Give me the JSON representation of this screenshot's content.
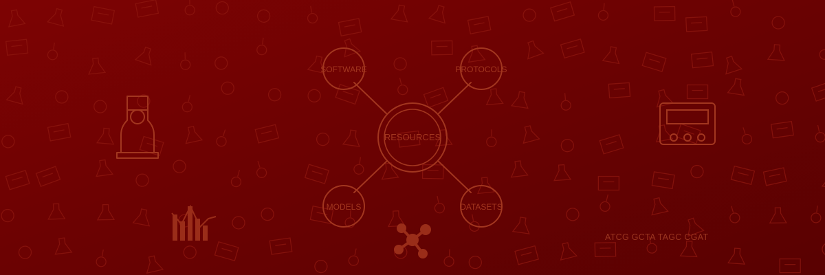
{
  "banner": {
    "colors": {
      "background_top": "#7d0303",
      "background_bottom": "#590101",
      "line_art": "#a2361f",
      "pattern": "#8e1810"
    },
    "hub": {
      "label": "RESOURCES"
    },
    "nodes": {
      "software": "SOFTWARE",
      "protocols": "PROTOCOLS",
      "models": "MODELS",
      "datasets": "DATASETS"
    },
    "dna_sequence": "ATCG  GCTA  TAGC  CGAT",
    "icons": [
      "flask-icon",
      "bar-chart-icon",
      "molecule-icon",
      "instrument-icon"
    ]
  }
}
